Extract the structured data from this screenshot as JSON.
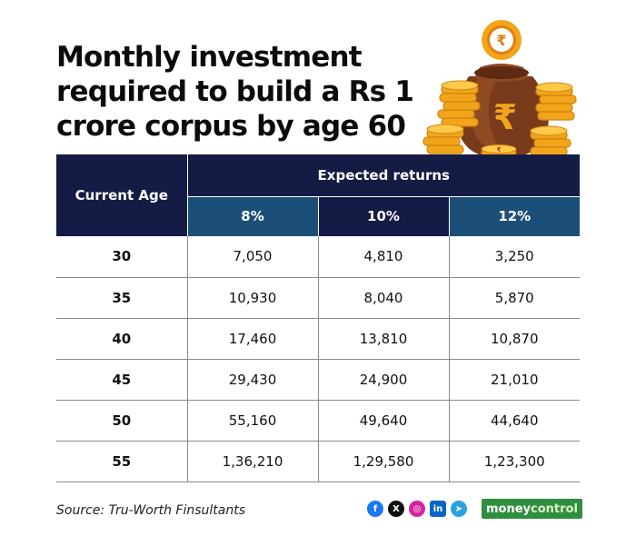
{
  "title_lines": [
    "Monthly investment",
    "required to build a Rs 1",
    "crore corpus by age 60"
  ],
  "chart_data": {
    "type": "table",
    "title": "Monthly investment required to build a Rs 1 crore corpus by age 60",
    "row_header": "Current Age",
    "column_group": "Expected returns",
    "columns": [
      "8%",
      "10%",
      "12%"
    ],
    "rows": [
      {
        "age": "30",
        "values": [
          "7,050",
          "4,810",
          "3,250"
        ]
      },
      {
        "age": "35",
        "values": [
          "10,930",
          "8,040",
          "5,870"
        ]
      },
      {
        "age": "40",
        "values": [
          "17,460",
          "13,810",
          "10,870"
        ]
      },
      {
        "age": "45",
        "values": [
          "29,430",
          "24,900",
          "21,010"
        ]
      },
      {
        "age": "50",
        "values": [
          "55,160",
          "49,640",
          "44,640"
        ]
      },
      {
        "age": "55",
        "values": [
          "1,36,210",
          "1,29,580",
          "1,23,300"
        ]
      }
    ]
  },
  "colors": {
    "header_navy": "#141b45",
    "header_blue": "#1c4f78",
    "gold": "#f2a51a",
    "bag_brown": "#7a3b1c"
  },
  "icons": [
    "rupee-coin-icon",
    "money-bag-icon",
    "coin-stack-icon"
  ],
  "footer": {
    "source": "Source: Tru-Worth Finsultants",
    "socials": [
      {
        "name": "facebook-icon",
        "glyph": "f"
      },
      {
        "name": "x-icon",
        "glyph": "X"
      },
      {
        "name": "instagram-icon",
        "glyph": "◎"
      },
      {
        "name": "linkedin-icon",
        "glyph": "in"
      },
      {
        "name": "telegram-icon",
        "glyph": "➤"
      }
    ],
    "brand_part1": "money",
    "brand_part2": "control"
  }
}
